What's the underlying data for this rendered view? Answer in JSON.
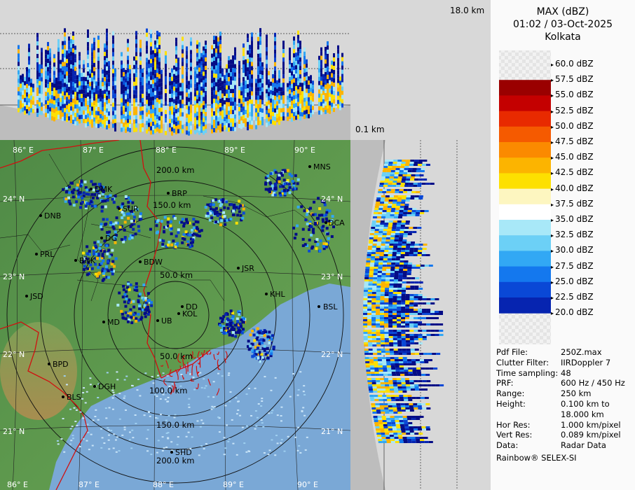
{
  "height_labels": {
    "max": "18.0 km",
    "min": "0.1 km"
  },
  "legend": {
    "title": "MAX (dBZ)",
    "datetime": "01:02 / 03-Oct-2025",
    "station": "Kolkata",
    "levels": [
      {
        "label": "60.0 dBZ",
        "color": ""
      },
      {
        "label": "57.5 dBZ",
        "color": "#9a0000"
      },
      {
        "label": "55.0 dBZ",
        "color": "#c40000"
      },
      {
        "label": "52.5 dBZ",
        "color": "#e82a00"
      },
      {
        "label": "50.0 dBZ",
        "color": "#f55a00"
      },
      {
        "label": "47.5 dBZ",
        "color": "#fb8a00"
      },
      {
        "label": "45.0 dBZ",
        "color": "#fcb400"
      },
      {
        "label": "42.5 dBZ",
        "color": "#fde000"
      },
      {
        "label": "40.0 dBZ",
        "color": "#fdf6c0"
      },
      {
        "label": "37.5 dBZ",
        "color": "#ffffff"
      },
      {
        "label": "35.0 dBZ",
        "color": "#a8e8f8"
      },
      {
        "label": "32.5 dBZ",
        "color": "#6cd0f6"
      },
      {
        "label": "30.0 dBZ",
        "color": "#32a8f4"
      },
      {
        "label": "27.5 dBZ",
        "color": "#1478ee"
      },
      {
        "label": "25.0 dBZ",
        "color": "#0a48d6"
      },
      {
        "label": "22.5 dBZ",
        "color": "#0624b0"
      },
      {
        "label": "20.0 dBZ",
        "color": "#040c86"
      }
    ]
  },
  "info": [
    {
      "key": "Pdf File:",
      "value": "250Z.max"
    },
    {
      "key": "Clutter Filter:",
      "value": "IIRDoppler 7"
    },
    {
      "key": "Time sampling:",
      "value": "48"
    },
    {
      "key": "PRF:",
      "value": "600 Hz / 450 Hz"
    },
    {
      "key": "Range:",
      "value": "250 km"
    },
    {
      "key": "Height:",
      "value": "0.100 km to"
    },
    {
      "key": "",
      "value": "18.000 km"
    },
    {
      "key": "Hor Res:",
      "value": "1.000 km/pixel"
    },
    {
      "key": "Vert Res:",
      "value": "0.089 km/pixel"
    },
    {
      "key": "Data:",
      "value": "Radar Data"
    }
  ],
  "footer": "Rainbow® SELEX-SI",
  "map": {
    "lon_labels": [
      "86° E",
      "87° E",
      "88° E",
      "89° E",
      "90° E"
    ],
    "lat_labels": [
      "24° N",
      "23° N",
      "22° N",
      "21° N"
    ],
    "range_labels": [
      "50.0 km",
      "100.0 km",
      "150.0 km",
      "200.0 km"
    ],
    "cities": [
      "MNS",
      "DMK",
      "BRP",
      "DNB",
      "SUR",
      "DCA",
      "DG",
      "PRL",
      "BNK",
      "BDW",
      "JSR",
      "KHL",
      "JSD",
      "BSL",
      "DD",
      "KOL",
      "MD",
      "UB",
      "BPD",
      "DGH",
      "BLS",
      "SHD"
    ]
  }
}
